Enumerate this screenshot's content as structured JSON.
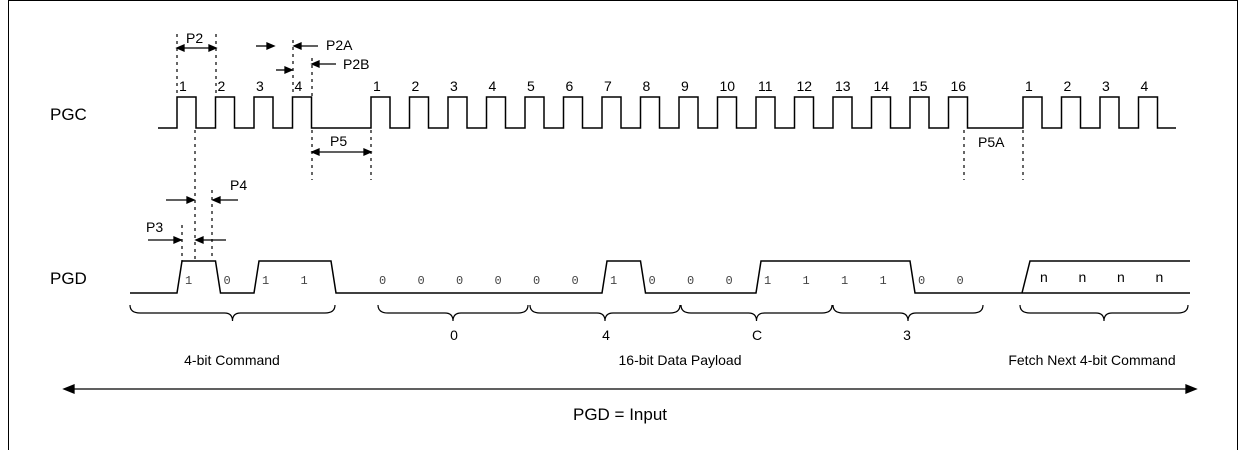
{
  "signals": {
    "pgc": "PGC",
    "pgd": "PGD"
  },
  "clock_numbers": {
    "command": [
      "1",
      "2",
      "3",
      "4"
    ],
    "payload": [
      "1",
      "2",
      "3",
      "4",
      "5",
      "6",
      "7",
      "8",
      "9",
      "10",
      "11",
      "12",
      "13",
      "14",
      "15",
      "16"
    ],
    "next": [
      "1",
      "2",
      "3",
      "4"
    ]
  },
  "timing_labels": {
    "p2": "P2",
    "p2a": "P2A",
    "p2b": "P2B",
    "p3": "P3",
    "p4": "P4",
    "p5": "P5",
    "p5a": "P5A"
  },
  "data_bits": {
    "command": [
      "1",
      "0",
      "1",
      "1"
    ],
    "payload": [
      "0",
      "0",
      "0",
      "0",
      "0",
      "0",
      "1",
      "0",
      "0",
      "0",
      "1",
      "1",
      "1",
      "1",
      "0",
      "0"
    ],
    "next": [
      "n",
      "n",
      "n",
      "n"
    ]
  },
  "nibbles": [
    "0",
    "4",
    "C",
    "3"
  ],
  "group_labels": {
    "command": "4-bit Command",
    "payload": "16-bit Data Payload",
    "next": "Fetch Next 4-bit Command"
  },
  "footer": "PGD = Input"
}
